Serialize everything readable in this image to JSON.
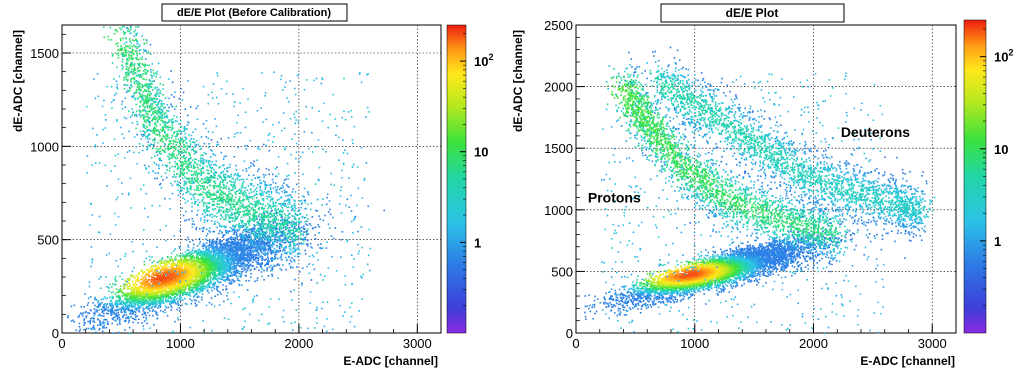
{
  "chart_data": [
    {
      "type": "heatmap",
      "title": "dE/E Plot (Before Calibration)",
      "xlabel": "E-ADC [channel]",
      "ylabel": "dE-ADC [channel]",
      "xlim": [
        0,
        3200
      ],
      "ylim": [
        0,
        1650
      ],
      "xticks": [
        0,
        1000,
        2000,
        3000
      ],
      "yticks": [
        0,
        500,
        1000,
        1500
      ],
      "grid": true,
      "colorbar": {
        "scale": "log",
        "range": [
          0.1,
          250
        ],
        "labels": [
          {
            "value": 1,
            "text": "1"
          },
          {
            "value": 10,
            "text": "10"
          },
          {
            "value": 100,
            "base": "10",
            "exp": "2"
          }
        ]
      },
      "annotations": [],
      "regions": [
        {
          "label": "",
          "peak": [
            850,
            300
          ],
          "extent_x": [
            150,
            2000
          ],
          "extent_y": [
            100,
            700
          ],
          "max_count": 200
        },
        {
          "label": "",
          "band": [
            [
              500,
              1600
            ],
            [
              800,
              1100
            ],
            [
              1200,
              780
            ],
            [
              1600,
              650
            ],
            [
              2000,
              560
            ]
          ],
          "max_count": 10
        }
      ]
    },
    {
      "type": "heatmap",
      "title": "dE/E Plot",
      "xlabel": "E-ADC [channel]",
      "ylabel": "dE-ADC [channel]",
      "xlim": [
        0,
        3200
      ],
      "ylim": [
        0,
        2500
      ],
      "xticks": [
        0,
        1000,
        2000,
        3000
      ],
      "yticks": [
        0,
        500,
        1000,
        1500,
        2000,
        2500
      ],
      "grid": true,
      "colorbar": {
        "scale": "log",
        "range": [
          0.1,
          250
        ],
        "labels": [
          {
            "value": 1,
            "text": "1"
          },
          {
            "value": 10,
            "text": "10"
          },
          {
            "value": 100,
            "base": "10",
            "exp": "2"
          }
        ]
      },
      "annotations": [
        {
          "text": "Protons",
          "x": 100,
          "y": 1060
        },
        {
          "text": "Deuterons",
          "x": 2230,
          "y": 1590
        }
      ],
      "regions": [
        {
          "label": "Protons",
          "peak": [
            950,
            480
          ],
          "extent_x": [
            350,
            2200
          ],
          "extent_y": [
            300,
            900
          ],
          "max_count": 200
        },
        {
          "label": "Protons-upper",
          "band": [
            [
              400,
              2000
            ],
            [
              600,
              1700
            ],
            [
              900,
              1350
            ],
            [
              1300,
              1080
            ],
            [
              1800,
              900
            ],
            [
              2200,
              800
            ]
          ],
          "max_count": 15
        },
        {
          "label": "Deuterons",
          "band": [
            [
              700,
              2050
            ],
            [
              1100,
              1800
            ],
            [
              1500,
              1550
            ],
            [
              1900,
              1300
            ],
            [
              2300,
              1150
            ],
            [
              2700,
              1050
            ],
            [
              2900,
              1000
            ]
          ],
          "max_count": 5
        }
      ]
    }
  ]
}
